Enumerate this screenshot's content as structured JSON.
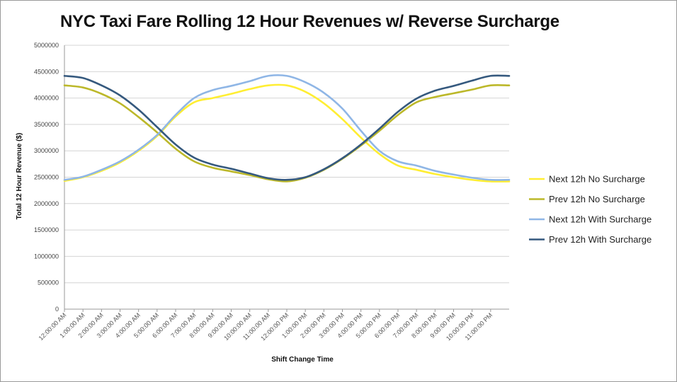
{
  "chart_data": {
    "type": "line",
    "title": "NYC Taxi Fare Rolling 12 Hour Revenues w/ Reverse Surcharge",
    "xlabel": "Shift Change Time",
    "ylabel": "Total 12 Hour Revenue ($)",
    "ylim": [
      0,
      5000000
    ],
    "yticks": [
      "0",
      "500000",
      "1000000",
      "1500000",
      "2000000",
      "2500000",
      "3000000",
      "3500000",
      "4000000",
      "4500000",
      "5000000"
    ],
    "xtick_labels": [
      "12:00:00 AM",
      "1:00:00 AM",
      "2:00:00 AM",
      "3:00:00 AM",
      "4:00:00 AM",
      "5:00:00 AM",
      "6:00:00 AM",
      "7:00:00 AM",
      "8:00:00 AM",
      "9:00:00 AM",
      "10:00:00 AM",
      "11:00:00 AM",
      "12:00:00 PM",
      "1:00:00 PM",
      "2:00:00 PM",
      "3:00:00 PM",
      "4:00:00 PM",
      "5:00:00 PM",
      "6:00:00 PM",
      "7:00:00 PM",
      "8:00:00 PM",
      "9:00:00 PM",
      "10:00:00 PM",
      "11:00:00 PM"
    ],
    "x_hours": [
      0,
      1,
      2,
      3,
      4,
      5,
      6,
      7,
      8,
      9,
      10,
      11,
      12,
      13,
      14,
      15,
      16,
      17,
      18,
      19,
      20,
      21,
      22,
      23,
      24
    ],
    "x_range": [
      0,
      24
    ],
    "grid": "horizontal",
    "legend_position": "right",
    "series": [
      {
        "name": "Next 12h No Surcharge",
        "color": "#ffee33",
        "values": [
          2430000,
          2500000,
          2620000,
          2780000,
          3000000,
          3280000,
          3650000,
          3920000,
          4000000,
          4080000,
          4170000,
          4240000,
          4240000,
          4120000,
          3900000,
          3600000,
          3250000,
          2940000,
          2720000,
          2640000,
          2560000,
          2500000,
          2450000,
          2420000,
          2420000
        ]
      },
      {
        "name": "Prev 12h No Surcharge",
        "color": "#bcb82a",
        "values": [
          4240000,
          4200000,
          4080000,
          3900000,
          3640000,
          3350000,
          3040000,
          2800000,
          2680000,
          2610000,
          2540000,
          2460000,
          2420000,
          2490000,
          2640000,
          2850000,
          3100000,
          3380000,
          3680000,
          3920000,
          4020000,
          4090000,
          4160000,
          4240000,
          4240000
        ]
      },
      {
        "name": "Next 12h With Surcharge",
        "color": "#8fb6e6",
        "values": [
          2450000,
          2510000,
          2640000,
          2800000,
          3020000,
          3300000,
          3680000,
          4000000,
          4150000,
          4230000,
          4320000,
          4420000,
          4420000,
          4300000,
          4100000,
          3800000,
          3380000,
          3000000,
          2800000,
          2720000,
          2620000,
          2550000,
          2490000,
          2450000,
          2450000
        ]
      },
      {
        "name": "Prev 12h With Surcharge",
        "color": "#35597e",
        "values": [
          4420000,
          4380000,
          4240000,
          4050000,
          3780000,
          3450000,
          3120000,
          2870000,
          2740000,
          2660000,
          2570000,
          2480000,
          2450000,
          2500000,
          2650000,
          2860000,
          3120000,
          3420000,
          3740000,
          3990000,
          4140000,
          4230000,
          4330000,
          4420000,
          4420000
        ]
      }
    ]
  }
}
